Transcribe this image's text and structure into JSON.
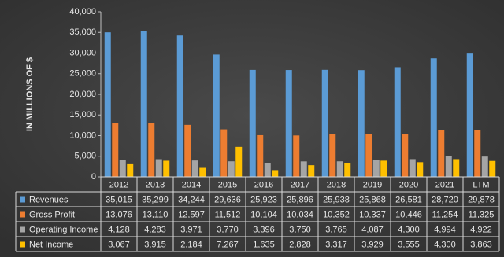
{
  "chart_data": {
    "type": "bar",
    "y_label": "IN MILLIONS OF $",
    "categories": [
      "2012",
      "2013",
      "2014",
      "2015",
      "2016",
      "2017",
      "2018",
      "2019",
      "2020",
      "2021",
      "LTM"
    ],
    "series": [
      {
        "name": "Revenues",
        "color": "#5b9bd5",
        "values": [
          35015,
          35299,
          34244,
          29636,
          25923,
          25896,
          25938,
          25868,
          26581,
          28720,
          29878
        ],
        "value_labels": [
          "35,015",
          "35,299",
          "34,244",
          "29,636",
          "25,923",
          "25,896",
          "25,938",
          "25,868",
          "26,581",
          "28,720",
          "29,878"
        ]
      },
      {
        "name": "Gross Profit",
        "color": "#ed7d31",
        "values": [
          13076,
          13110,
          12597,
          11512,
          10104,
          10034,
          10352,
          10337,
          10446,
          11254,
          11325
        ],
        "value_labels": [
          "13,076",
          "13,110",
          "12,597",
          "11,512",
          "10,104",
          "10,034",
          "10,352",
          "10,337",
          "10,446",
          "11,254",
          "11,325"
        ]
      },
      {
        "name": "Operating Income",
        "color": "#a5a5a5",
        "values": [
          4128,
          4283,
          3971,
          3770,
          3396,
          3750,
          3765,
          4087,
          4300,
          4994,
          4922
        ],
        "value_labels": [
          "4,128",
          "4,283",
          "3,971",
          "3,770",
          "3,396",
          "3,750",
          "3,765",
          "4,087",
          "4,300",
          "4,994",
          "4,922"
        ]
      },
      {
        "name": "Net Income",
        "color": "#ffc000",
        "values": [
          3067,
          3915,
          2184,
          7267,
          1635,
          2828,
          3317,
          3929,
          3555,
          4300,
          3863
        ],
        "value_labels": [
          "3,067",
          "3,915",
          "2,184",
          "7,267",
          "1,635",
          "2,828",
          "3,317",
          "3,929",
          "3,555",
          "4,300",
          "3,863"
        ]
      }
    ],
    "ylim": [
      0,
      40000
    ],
    "yticks": [
      0,
      {
        "value": 5000,
        "label": "5,000"
      },
      {
        "value": 10000,
        "label": "10,000"
      },
      {
        "value": 15000,
        "label": "15,000"
      },
      {
        "value": 20000,
        "label": "20,000"
      },
      {
        "value": 25000,
        "label": "25,000"
      },
      {
        "value": 30000,
        "label": "30,000"
      },
      {
        "value": 35000,
        "label": "35,000"
      },
      {
        "value": 40000,
        "label": "40,000"
      }
    ]
  }
}
